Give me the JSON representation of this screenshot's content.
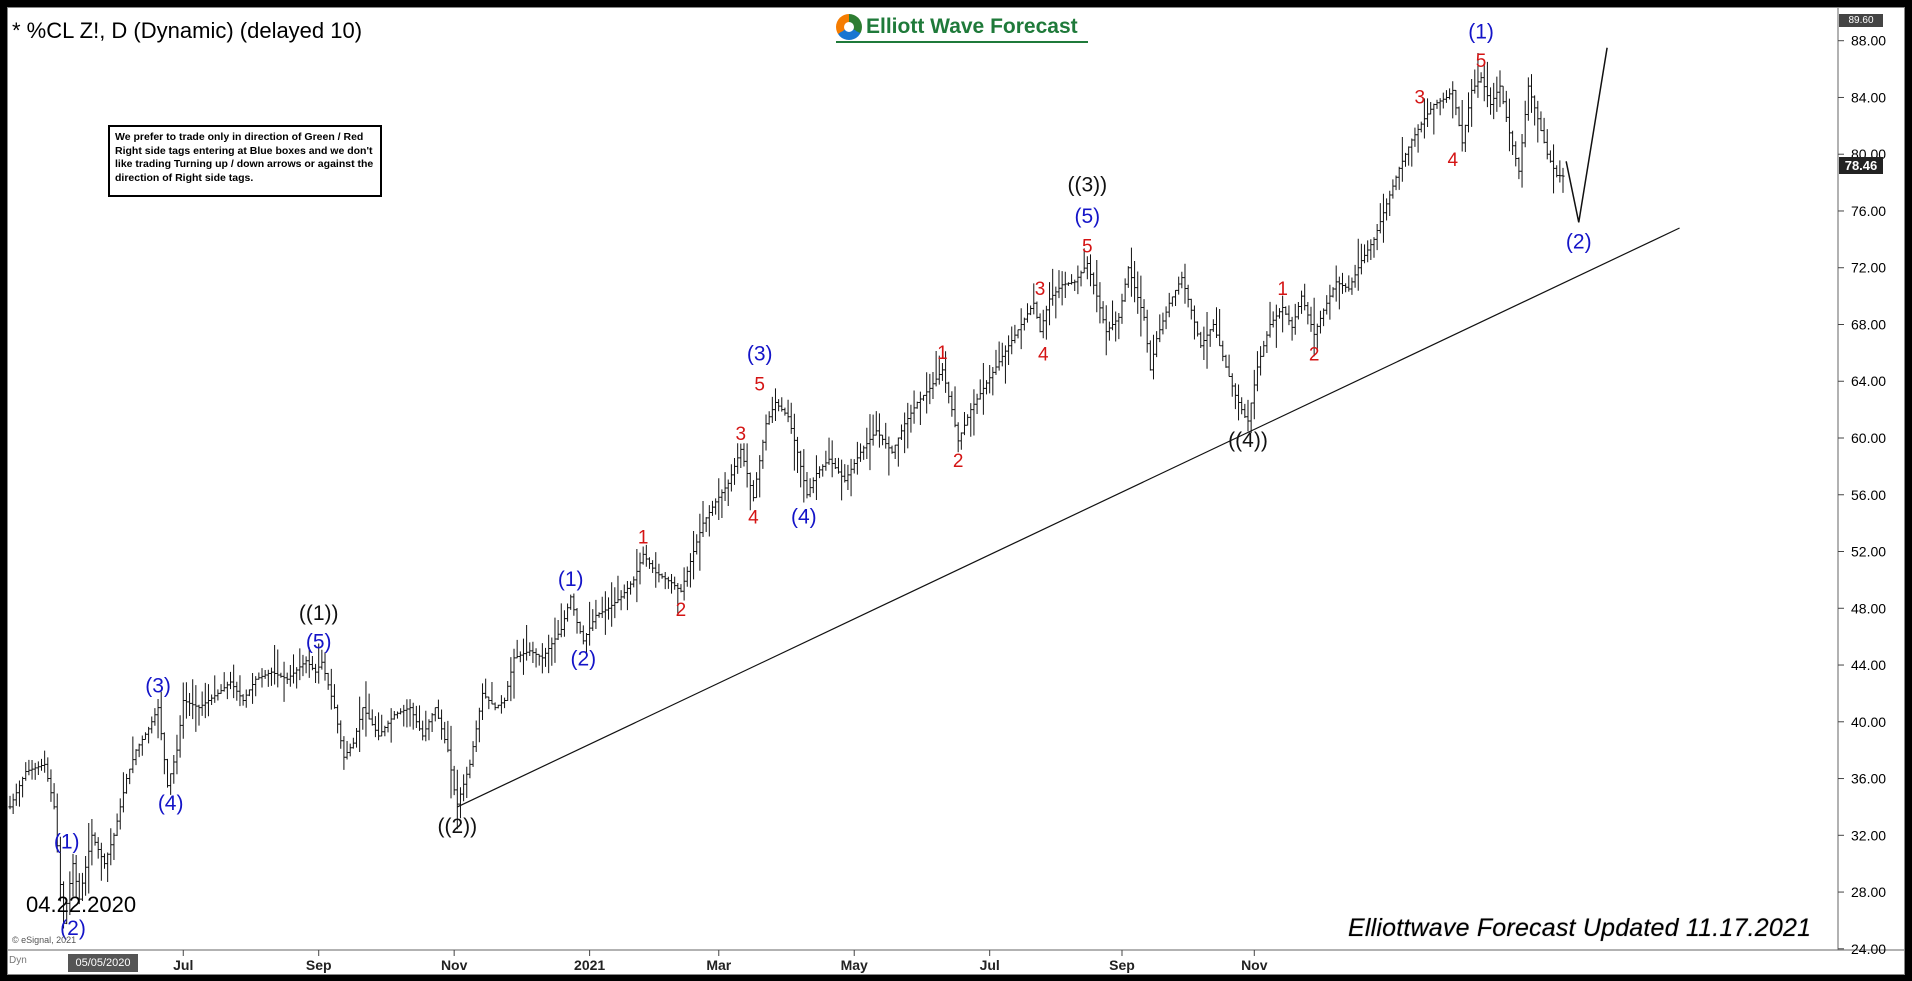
{
  "header": {
    "symbol_title": "* %CL Z!, D (Dynamic) (delayed 10)",
    "logo_text": "Elliott Wave Forecast"
  },
  "note_box": {
    "text": "We prefer to trade only in direction of Green / Red Right side tags entering at Blue boxes and we don't like trading Turning up / down arrows or against the direction of Right side tags."
  },
  "annotations": {
    "start_date": "04.22.2020",
    "updated": "Elliottwave Forecast Updated 11.17.2021",
    "copyright": "© eSignal, 2021",
    "dyn_label": "Dyn",
    "current_price": "78.46",
    "top_price": "89.60",
    "cursor_date": "05/05/2020"
  },
  "chart_data": {
    "type": "ohlc-bar",
    "x_unit": "trading days since chart start",
    "y_axis": {
      "ticks": [
        "24.00",
        "28.00",
        "32.00",
        "36.00",
        "40.00",
        "44.00",
        "48.00",
        "52.00",
        "56.00",
        "60.00",
        "64.00",
        "68.00",
        "72.00",
        "76.00",
        "80.00",
        "84.00",
        "88.00"
      ],
      "range": [
        23,
        89.6
      ]
    },
    "x_axis": {
      "tick_labels": [
        "Jul",
        "Sep",
        "Nov",
        "2021",
        "Mar",
        "May",
        "Jul",
        "Sep",
        "Nov"
      ],
      "tick_index": [
        55,
        98,
        141,
        184,
        225,
        268,
        311,
        353,
        395
      ]
    },
    "price_path": [
      [
        0,
        34
      ],
      [
        5,
        36.5
      ],
      [
        11,
        37
      ],
      [
        14,
        34
      ],
      [
        17,
        25.8
      ],
      [
        20,
        30
      ],
      [
        22,
        27.5
      ],
      [
        26,
        32
      ],
      [
        30,
        30
      ],
      [
        33,
        32
      ],
      [
        37,
        36
      ],
      [
        40,
        38
      ],
      [
        44,
        39.5
      ],
      [
        47,
        41
      ],
      [
        50,
        35.5
      ],
      [
        53,
        38
      ],
      [
        55,
        41.5
      ],
      [
        60,
        41
      ],
      [
        66,
        42
      ],
      [
        70,
        42.8
      ],
      [
        74,
        41.5
      ],
      [
        78,
        43
      ],
      [
        83,
        43.5
      ],
      [
        88,
        43
      ],
      [
        94,
        44.3
      ],
      [
        97,
        43.5
      ],
      [
        99,
        44.2
      ],
      [
        103,
        41
      ],
      [
        106,
        37.5
      ],
      [
        109,
        38.5
      ],
      [
        112,
        41
      ],
      [
        117,
        39
      ],
      [
        122,
        40.5
      ],
      [
        127,
        41
      ],
      [
        131,
        39
      ],
      [
        135,
        41
      ],
      [
        139,
        38
      ],
      [
        141,
        35.2
      ],
      [
        142,
        34.2
      ],
      [
        146,
        37
      ],
      [
        150,
        42
      ],
      [
        154,
        41
      ],
      [
        157,
        41.5
      ],
      [
        160,
        44.5
      ],
      [
        165,
        45
      ],
      [
        169,
        44.5
      ],
      [
        175,
        46.5
      ],
      [
        178,
        48.8
      ],
      [
        180,
        47
      ],
      [
        182,
        45.7
      ],
      [
        186,
        47.5
      ],
      [
        190,
        48
      ],
      [
        194,
        48.8
      ],
      [
        198,
        50
      ],
      [
        201,
        51.8
      ],
      [
        205,
        50.5
      ],
      [
        210,
        49.8
      ],
      [
        213,
        49.2
      ],
      [
        217,
        52
      ],
      [
        220,
        54
      ],
      [
        224,
        55.5
      ],
      [
        228,
        56.8
      ],
      [
        232,
        59.2
      ],
      [
        234,
        57.5
      ],
      [
        236,
        55.8
      ],
      [
        240,
        61
      ],
      [
        243,
        62.5
      ],
      [
        247,
        61.5
      ],
      [
        250,
        59
      ],
      [
        253,
        56
      ],
      [
        256,
        57.5
      ],
      [
        260,
        58.5
      ],
      [
        265,
        57
      ],
      [
        270,
        59
      ],
      [
        275,
        60.5
      ],
      [
        280,
        59
      ],
      [
        284,
        61
      ],
      [
        288,
        62.5
      ],
      [
        292,
        63.5
      ],
      [
        296,
        64.8
      ],
      [
        299,
        62
      ],
      [
        301,
        59.8
      ],
      [
        305,
        62
      ],
      [
        309,
        63.5
      ],
      [
        313,
        65
      ],
      [
        317,
        66.5
      ],
      [
        321,
        68
      ],
      [
        325,
        69.5
      ],
      [
        327,
        67.5
      ],
      [
        330,
        69.8
      ],
      [
        334,
        70.8
      ],
      [
        338,
        71
      ],
      [
        342,
        72.3
      ],
      [
        345,
        70
      ],
      [
        348,
        67.5
      ],
      [
        352,
        68.5
      ],
      [
        355,
        72
      ],
      [
        360,
        68.5
      ],
      [
        362,
        64.8
      ],
      [
        364,
        67
      ],
      [
        368,
        69.5
      ],
      [
        372,
        71.3
      ],
      [
        375,
        69
      ],
      [
        378,
        66.5
      ],
      [
        382,
        68
      ],
      [
        386,
        65
      ],
      [
        389,
        63
      ],
      [
        392,
        61.5
      ],
      [
        393,
        61.2
      ],
      [
        396,
        65
      ],
      [
        400,
        68
      ],
      [
        404,
        69.2
      ],
      [
        407,
        67.8
      ],
      [
        410,
        70
      ],
      [
        413,
        68
      ],
      [
        414,
        67.3
      ],
      [
        417,
        69
      ],
      [
        421,
        71
      ],
      [
        425,
        70.5
      ],
      [
        429,
        72.5
      ],
      [
        433,
        74
      ],
      [
        437,
        76.5
      ],
      [
        441,
        79
      ],
      [
        445,
        81
      ],
      [
        449,
        82.5
      ],
      [
        452,
        83.5
      ],
      [
        456,
        84
      ],
      [
        458,
        84.5
      ],
      [
        461,
        80.8
      ],
      [
        464,
        84.5
      ],
      [
        467,
        85.4
      ],
      [
        470,
        83.5
      ],
      [
        473,
        84.8
      ],
      [
        476,
        81.5
      ],
      [
        479,
        78.8
      ],
      [
        482,
        84.8
      ],
      [
        485,
        82.5
      ],
      [
        488,
        80
      ],
      [
        491,
        78.5
      ],
      [
        493,
        78.46
      ]
    ],
    "projection": [
      [
        494,
        79.5
      ],
      [
        498,
        75.2
      ],
      [
        507,
        87.5
      ]
    ],
    "trendline": [
      [
        142,
        34
      ],
      [
        530,
        74.8
      ]
    ],
    "wave_labels": [
      {
        "text": "(1)",
        "x": 18,
        "y": 30.5,
        "color": "blue",
        "pos": "above"
      },
      {
        "text": "(2)",
        "x": 20,
        "y": 26.8,
        "color": "blue",
        "pos": "below"
      },
      {
        "text": "(3)",
        "x": 47,
        "y": 41.5,
        "color": "blue",
        "pos": "above"
      },
      {
        "text": "(4)",
        "x": 51,
        "y": 35.6,
        "color": "blue",
        "pos": "below"
      },
      {
        "text": "((1))",
        "x": 98,
        "y": 46.6,
        "color": "black",
        "pos": "above"
      },
      {
        "text": "(5)",
        "x": 98,
        "y": 44.6,
        "color": "blue",
        "pos": "above"
      },
      {
        "text": "((2))",
        "x": 142,
        "y": 34,
        "color": "black",
        "pos": "below"
      },
      {
        "text": "(1)",
        "x": 178,
        "y": 49,
        "color": "blue",
        "pos": "above"
      },
      {
        "text": "(2)",
        "x": 182,
        "y": 45.8,
        "color": "blue",
        "pos": "below"
      },
      {
        "text": "1",
        "x": 201,
        "y": 52,
        "color": "red",
        "pos": "above"
      },
      {
        "text": "2",
        "x": 213,
        "y": 49.3,
        "color": "red",
        "pos": "below"
      },
      {
        "text": "3",
        "x": 232,
        "y": 59.3,
        "color": "red",
        "pos": "above"
      },
      {
        "text": "4",
        "x": 236,
        "y": 55.8,
        "color": "red",
        "pos": "below"
      },
      {
        "text": "5",
        "x": 238,
        "y": 62.8,
        "color": "red",
        "pos": "above"
      },
      {
        "text": "(3)",
        "x": 238,
        "y": 64.9,
        "color": "blue",
        "pos": "above"
      },
      {
        "text": "(4)",
        "x": 252,
        "y": 55.8,
        "color": "blue",
        "pos": "below"
      },
      {
        "text": "1",
        "x": 296,
        "y": 65,
        "color": "red",
        "pos": "above"
      },
      {
        "text": "2",
        "x": 301,
        "y": 59.8,
        "color": "red",
        "pos": "below"
      },
      {
        "text": "3",
        "x": 327,
        "y": 69.5,
        "color": "red",
        "pos": "above"
      },
      {
        "text": "4",
        "x": 328,
        "y": 67.3,
        "color": "red",
        "pos": "below"
      },
      {
        "text": "5",
        "x": 342,
        "y": 72.5,
        "color": "red",
        "pos": "above"
      },
      {
        "text": "(5)",
        "x": 342,
        "y": 74.6,
        "color": "blue",
        "pos": "above"
      },
      {
        "text": "((3))",
        "x": 342,
        "y": 76.8,
        "color": "black",
        "pos": "above"
      },
      {
        "text": "((4))",
        "x": 393,
        "y": 61.2,
        "color": "black",
        "pos": "below"
      },
      {
        "text": "1",
        "x": 404,
        "y": 69.5,
        "color": "red",
        "pos": "above"
      },
      {
        "text": "2",
        "x": 414,
        "y": 67.3,
        "color": "red",
        "pos": "below"
      },
      {
        "text": "3",
        "x": 452,
        "y": 84,
        "color": "red",
        "pos": "left"
      },
      {
        "text": "4",
        "x": 458,
        "y": 81,
        "color": "red",
        "pos": "below"
      },
      {
        "text": "5",
        "x": 467,
        "y": 85.6,
        "color": "red",
        "pos": "above"
      },
      {
        "text": "(1)",
        "x": 467,
        "y": 87.6,
        "color": "blue",
        "pos": "above"
      },
      {
        "text": "(2)",
        "x": 498,
        "y": 75.2,
        "color": "blue",
        "pos": "below"
      }
    ]
  }
}
